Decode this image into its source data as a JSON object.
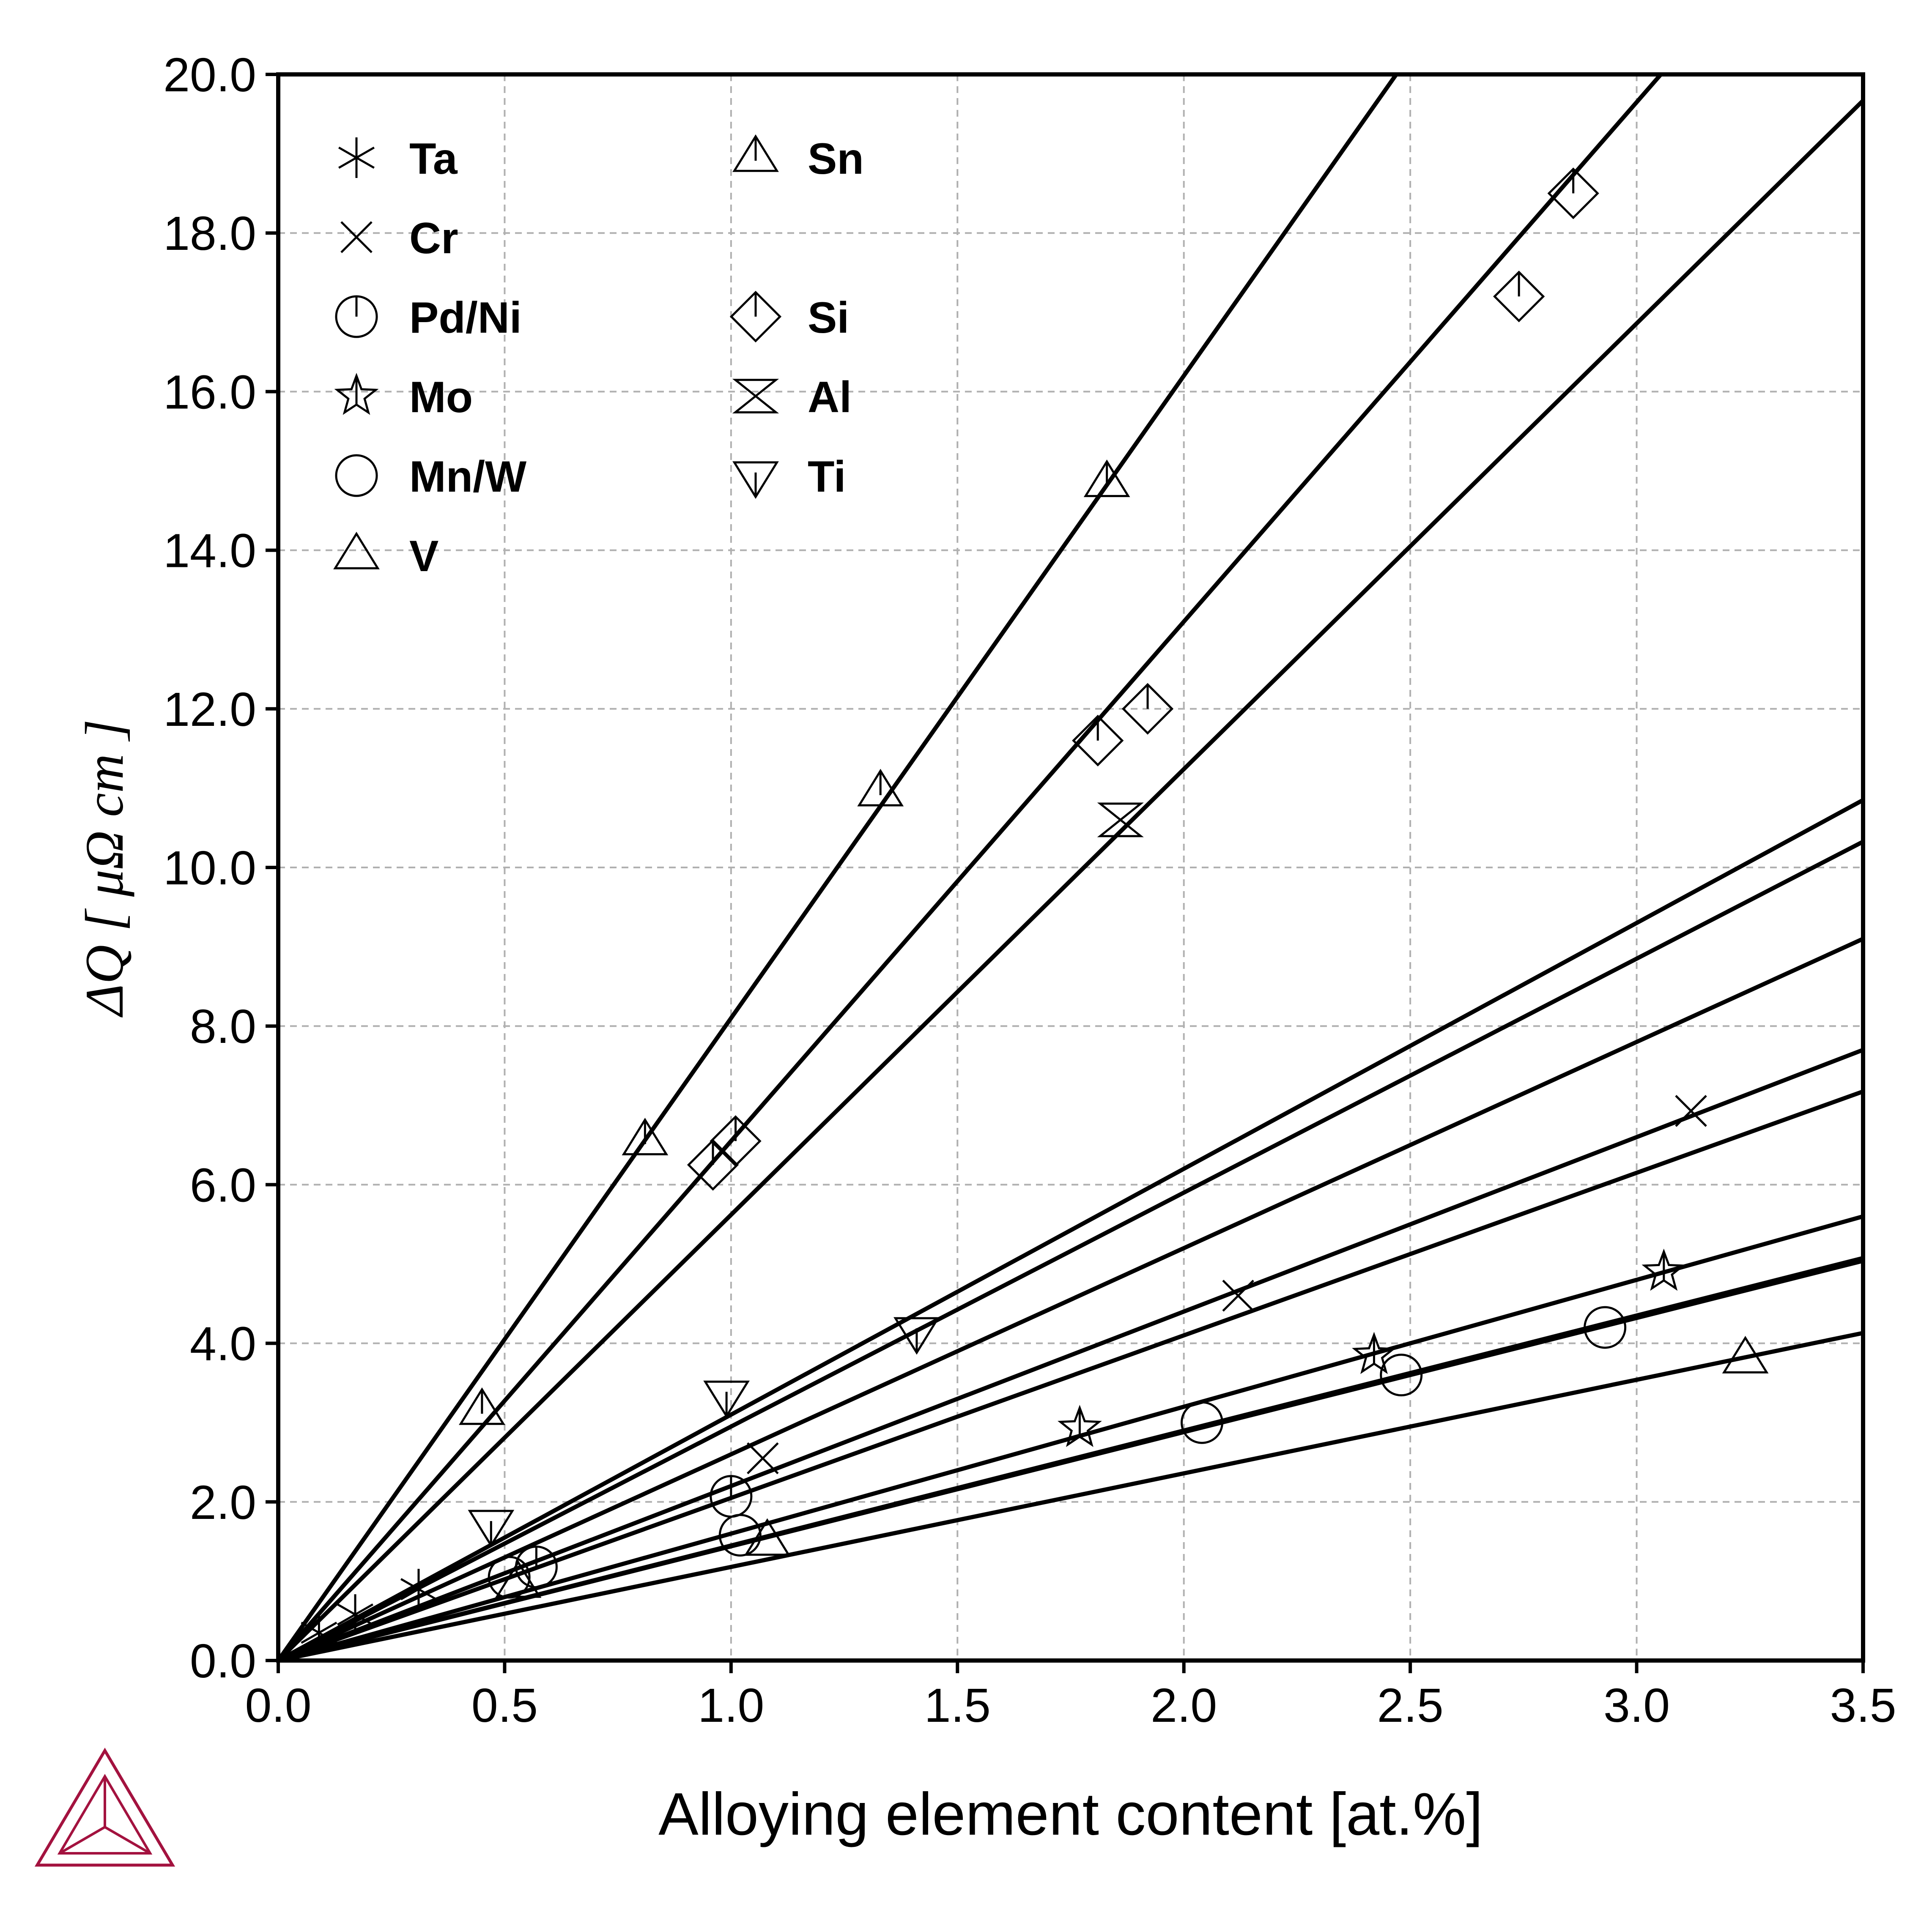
{
  "chart_data": {
    "type": "scatter",
    "title": "",
    "xlabel": "Alloying element content [at.%]",
    "ylabel": "ΔQ [ μΩ cm ]",
    "xlim": [
      0,
      3.5
    ],
    "ylim": [
      0,
      20
    ],
    "x_ticks": [
      "0.0",
      "0.5",
      "1.0",
      "1.5",
      "2.0",
      "2.5",
      "3.0",
      "3.5"
    ],
    "y_ticks": [
      "0.0",
      "2.0",
      "4.0",
      "6.0",
      "8.0",
      "10.0",
      "12.0",
      "14.0",
      "16.0",
      "18.0",
      "20.0"
    ],
    "grid": true,
    "legend_position": "top-left",
    "colors": {
      "line": "#000000",
      "grid": "#b0b0b0",
      "logo": "#a3123f"
    },
    "series": [
      {
        "name": "Ta",
        "marker": "asterisk",
        "slope": 2.95,
        "points": [
          [
            0.09,
            0.35
          ],
          [
            0.17,
            0.58
          ],
          [
            0.31,
            0.9
          ]
        ]
      },
      {
        "name": "Cr",
        "marker": "x",
        "slope": 2.2,
        "points": [
          [
            1.07,
            2.55
          ],
          [
            2.12,
            4.6
          ],
          [
            3.12,
            6.93
          ]
        ]
      },
      {
        "name": "Pd/Ni",
        "marker": "circle-bar",
        "slope": 2.05,
        "points": [
          [
            0.57,
            1.18
          ],
          [
            1.0,
            2.07
          ]
        ]
      },
      {
        "name": "Mo",
        "marker": "star",
        "slope": 1.6,
        "points": [
          [
            1.77,
            2.93
          ],
          [
            2.42,
            3.85
          ],
          [
            3.06,
            4.9
          ]
        ]
      },
      {
        "name": "Mn/W",
        "marker": "circle",
        "slope": 1.44,
        "points": [
          [
            0.51,
            1.05
          ],
          [
            1.02,
            1.58
          ],
          [
            2.04,
            3.0
          ],
          [
            2.48,
            3.6
          ],
          [
            2.93,
            4.2
          ]
        ]
      },
      {
        "name": "V",
        "marker": "triangle-up",
        "slope": 1.18,
        "points": [
          [
            0.53,
            0.97
          ],
          [
            1.08,
            1.5
          ],
          [
            3.24,
            3.8
          ]
        ]
      },
      {
        "name": "Sn",
        "marker": "triangle-up-bar",
        "slope": 8.1,
        "points": [
          [
            0.45,
            3.15
          ],
          [
            0.81,
            6.55
          ],
          [
            1.33,
            10.95
          ],
          [
            1.83,
            14.85
          ]
        ]
      },
      {
        "name": "Si",
        "marker": "diamond-bar",
        "slope": 6.55,
        "points": [
          [
            0.96,
            6.25
          ],
          [
            1.01,
            6.55
          ],
          [
            1.81,
            11.6
          ],
          [
            1.92,
            12.0
          ],
          [
            2.74,
            17.2
          ],
          [
            2.86,
            18.5
          ]
        ]
      },
      {
        "name": "Al",
        "marker": "hourglass",
        "slope": 5.62,
        "points": [
          [
            1.86,
            10.6
          ]
        ]
      },
      {
        "name": "Ti",
        "marker": "triangle-down-bar",
        "slope": 3.1,
        "points": [
          [
            0.47,
            1.72
          ],
          [
            0.99,
            3.35
          ],
          [
            1.41,
            4.15
          ]
        ]
      }
    ],
    "extra_lines": [
      {
        "slope": 1.45
      },
      {
        "slope": 2.6
      }
    ]
  }
}
